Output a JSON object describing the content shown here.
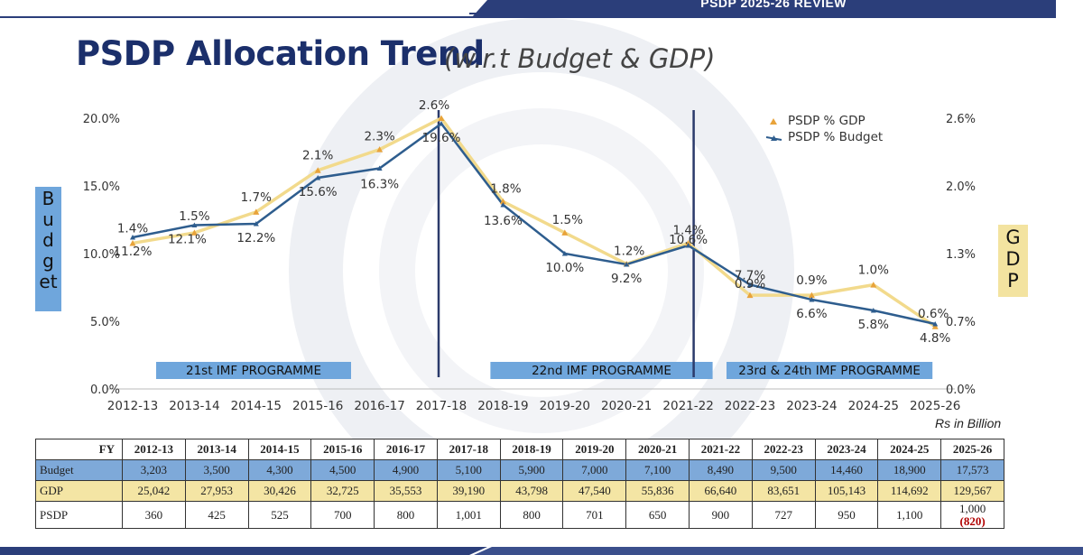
{
  "header": {
    "banner": "PSDP 2025-26 REVIEW"
  },
  "title": "PSDP Allocation Trend",
  "subtitle": "(w.r.t Budget & GDP)",
  "left_axis_title": [
    "B",
    "u",
    "d",
    "g",
    "et"
  ],
  "right_axis_title": [
    "G",
    "D",
    "P"
  ],
  "units_note": "Rs in Billion",
  "colors": {
    "budget_line": "#2e5d8e",
    "gdp_line": "#f2da8c",
    "gdp_marker": "#e8a33a",
    "title": "#1b2f6b",
    "program_box": "#6fa6dc",
    "divider": "#2b3a6b"
  },
  "chart_data": {
    "type": "line",
    "categories": [
      "2012-13",
      "2013-14",
      "2014-15",
      "2015-16",
      "2016-17",
      "2017-18",
      "2018-19",
      "2019-20",
      "2020-21",
      "2021-22",
      "2022-23",
      "2023-24",
      "2024-25",
      "2025-26"
    ],
    "left_axis": {
      "ylim": [
        0,
        20
      ],
      "ticks": [
        "0.0%",
        "5.0%",
        "10.0%",
        "15.0%",
        "20.0%"
      ]
    },
    "right_axis": {
      "ylim": [
        0,
        2.6
      ],
      "ticks": [
        "0.0%",
        "0.7%",
        "1.3%",
        "2.0%",
        "2.6%"
      ]
    },
    "series": [
      {
        "name": "PSDP % GDP",
        "axis": "right",
        "values": [
          1.4,
          1.5,
          1.7,
          2.1,
          2.3,
          2.6,
          1.8,
          1.5,
          1.2,
          1.4,
          0.9,
          0.9,
          1.0,
          0.6
        ],
        "labels": [
          "1.4%",
          "1.5%",
          "1.7%",
          "2.1%",
          "2.3%",
          "2.6%",
          "1.8%",
          "1.5%",
          "1.2%",
          "1.4%",
          "0.9%",
          "0.9%",
          "1.0%",
          "0.6%"
        ]
      },
      {
        "name": "PSDP % Budget",
        "axis": "left",
        "values": [
          11.2,
          12.1,
          12.2,
          15.6,
          16.3,
          19.6,
          13.6,
          10.0,
          9.2,
          10.6,
          7.7,
          6.6,
          5.8,
          4.8
        ],
        "labels": [
          "11.2%",
          "12.1%",
          "12.2%",
          "15.6%",
          "16.3%",
          "19.6%",
          "13.6%",
          "10.0%",
          "9.2%",
          "10.6%",
          "7.7%",
          "6.6%",
          "5.8%",
          "4.8%"
        ]
      }
    ],
    "legend_position": "top-right",
    "grid": false,
    "annotations": [
      {
        "text": "21st IMF PROGRAMME",
        "from": "2012-13",
        "to": "2017-18"
      },
      {
        "text": "22nd IMF PROGRAMME",
        "from": "2018-19",
        "to": "2021-22"
      },
      {
        "text": "23rd & 24th IMF PROGRAMME",
        "from": "2022-23",
        "to": "2025-26"
      }
    ],
    "dividers_after": [
      "2017-18",
      "2021-22"
    ]
  },
  "table": {
    "corner": "FY",
    "years": [
      "2012-13",
      "2013-14",
      "2014-15",
      "2015-16",
      "2016-17",
      "2017-18",
      "2018-19",
      "2019-20",
      "2020-21",
      "2021-22",
      "2022-23",
      "2023-24",
      "2024-25",
      "2025-26"
    ],
    "rows": [
      {
        "label": "Budget",
        "values": [
          "3,203",
          "3,500",
          "4,300",
          "4,500",
          "4,900",
          "5,100",
          "5,900",
          "7,000",
          "7,100",
          "8,490",
          "9,500",
          "14,460",
          "18,900",
          "17,573"
        ]
      },
      {
        "label": "GDP",
        "values": [
          "25,042",
          "27,953",
          "30,426",
          "32,725",
          "35,553",
          "39,190",
          "43,798",
          "47,540",
          "55,836",
          "66,640",
          "83,651",
          "105,143",
          "114,692",
          "129,567"
        ]
      },
      {
        "label": "PSDP",
        "values": [
          "360",
          "425",
          "525",
          "700",
          "800",
          "1,001",
          "800",
          "701",
          "650",
          "900",
          "727",
          "950",
          "1,100",
          "1,000"
        ],
        "note_last": "(820)"
      }
    ]
  }
}
